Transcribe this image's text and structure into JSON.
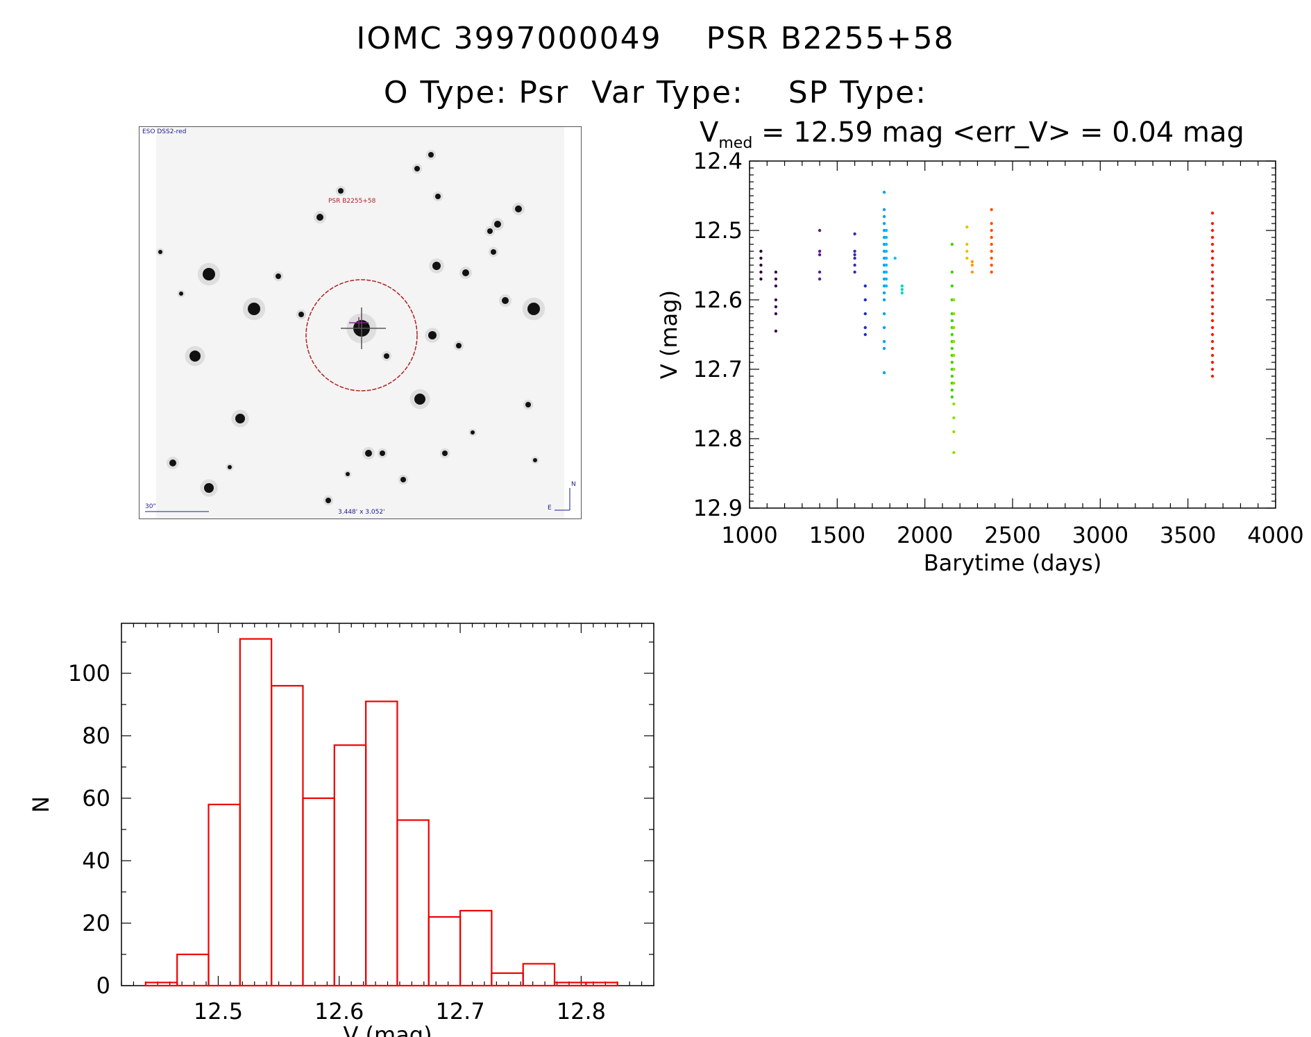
{
  "header": {
    "title_line1": "IOMC 3997000049    PSR B2255+58",
    "title_line2": "O Type: Psr  Var Type:    SP Type:"
  },
  "finder_chart": {
    "survey_label": "ESO DSS2-red",
    "target_label": "PSR B2255+58",
    "scale_label": "30\"",
    "fov_label": "3.448' x 3.052'",
    "north_label": "N",
    "east_label": "E",
    "colors": {
      "target_circle": "#b02020",
      "labels": "#1a1a8c",
      "target_text": "#b02020"
    }
  },
  "chart_data": [
    {
      "type": "scatter",
      "name": "light-curve",
      "vmed_label": "V",
      "vmed_sub": "med",
      "vmed_rest": " = 12.59 mag <err_V> = 0.04 mag",
      "xlabel": "Barytime (days)",
      "ylabel": "V (mag)",
      "xlim": [
        1000,
        4000
      ],
      "ylim": [
        12.9,
        12.4
      ],
      "y_inverted": true,
      "xticks": [
        1000,
        1500,
        2000,
        2500,
        3000,
        3500,
        4000
      ],
      "yticks": [
        12.4,
        12.5,
        12.6,
        12.7,
        12.8,
        12.9
      ],
      "groups": [
        {
          "x": 1065,
          "color": "#2a0030",
          "y": [
            12.53,
            12.54,
            12.55,
            12.56,
            12.57
          ]
        },
        {
          "x": 1150,
          "color": "#3c0850",
          "y": [
            12.56,
            12.57,
            12.58,
            12.6,
            12.61,
            12.62,
            12.645
          ]
        },
        {
          "x": 1400,
          "color": "#5a1890",
          "y": [
            12.5,
            12.53,
            12.535,
            12.56,
            12.57
          ]
        },
        {
          "x": 1600,
          "color": "#3a2ab0",
          "y": [
            12.505,
            12.53,
            12.535,
            12.54,
            12.55,
            12.56
          ]
        },
        {
          "x": 1660,
          "color": "#1a30c0",
          "y": [
            12.58,
            12.6,
            12.62,
            12.64,
            12.65
          ]
        },
        {
          "x": 1768,
          "color": "#00a0ff",
          "y": [
            12.445,
            12.47,
            12.48,
            12.49,
            12.5,
            12.51,
            12.52,
            12.53,
            12.54,
            12.55,
            12.56,
            12.57,
            12.58,
            12.59,
            12.6,
            12.62,
            12.64,
            12.66,
            12.67,
            12.705
          ]
        },
        {
          "x": 1780,
          "color": "#00b8ff",
          "y": [
            12.5,
            12.51,
            12.52,
            12.53,
            12.54,
            12.55,
            12.56,
            12.57,
            12.58
          ]
        },
        {
          "x": 1830,
          "color": "#00c8e8",
          "y": [
            12.54
          ]
        },
        {
          "x": 1870,
          "color": "#00d8c0",
          "y": [
            12.58,
            12.585,
            12.59
          ]
        },
        {
          "x": 2155,
          "color": "#40d000",
          "y": [
            12.52,
            12.56,
            12.58,
            12.6,
            12.62,
            12.63,
            12.64,
            12.65,
            12.66,
            12.67,
            12.68,
            12.69,
            12.7,
            12.71,
            12.72,
            12.73,
            12.74
          ]
        },
        {
          "x": 2165,
          "color": "#90e000",
          "y": [
            12.6,
            12.62,
            12.64,
            12.66,
            12.68,
            12.7,
            12.72,
            12.75,
            12.77,
            12.79,
            12.82
          ]
        },
        {
          "x": 2240,
          "color": "#e8c000",
          "y": [
            12.495,
            12.52,
            12.53,
            12.54
          ]
        },
        {
          "x": 2270,
          "color": "#ff9800",
          "y": [
            12.545,
            12.55,
            12.56
          ]
        },
        {
          "x": 2380,
          "color": "#ff5000",
          "y": [
            12.47,
            12.49,
            12.5,
            12.51,
            12.52,
            12.53,
            12.54,
            12.55,
            12.56
          ]
        },
        {
          "x": 3640,
          "color": "#ff1800",
          "y": [
            12.475,
            12.49,
            12.5,
            12.51,
            12.52,
            12.53,
            12.54,
            12.55,
            12.56,
            12.57,
            12.58,
            12.59,
            12.6,
            12.61,
            12.62,
            12.63,
            12.64,
            12.65,
            12.66,
            12.67,
            12.68,
            12.69,
            12.7,
            12.71
          ]
        }
      ]
    },
    {
      "type": "bar",
      "name": "histogram",
      "xlabel": "V (mag)",
      "ylabel": "N",
      "xlim": [
        12.42,
        12.86
      ],
      "ylim": [
        0,
        116
      ],
      "xticks": [
        12.5,
        12.6,
        12.7,
        12.8
      ],
      "yticks": [
        0,
        20,
        40,
        60,
        80,
        100
      ],
      "bin_width": 0.026,
      "bin_edges_start": 12.44,
      "values": [
        1,
        10,
        58,
        111,
        96,
        60,
        77,
        91,
        53,
        22,
        24,
        4,
        7,
        1,
        1
      ],
      "color": "#ee0000"
    }
  ]
}
